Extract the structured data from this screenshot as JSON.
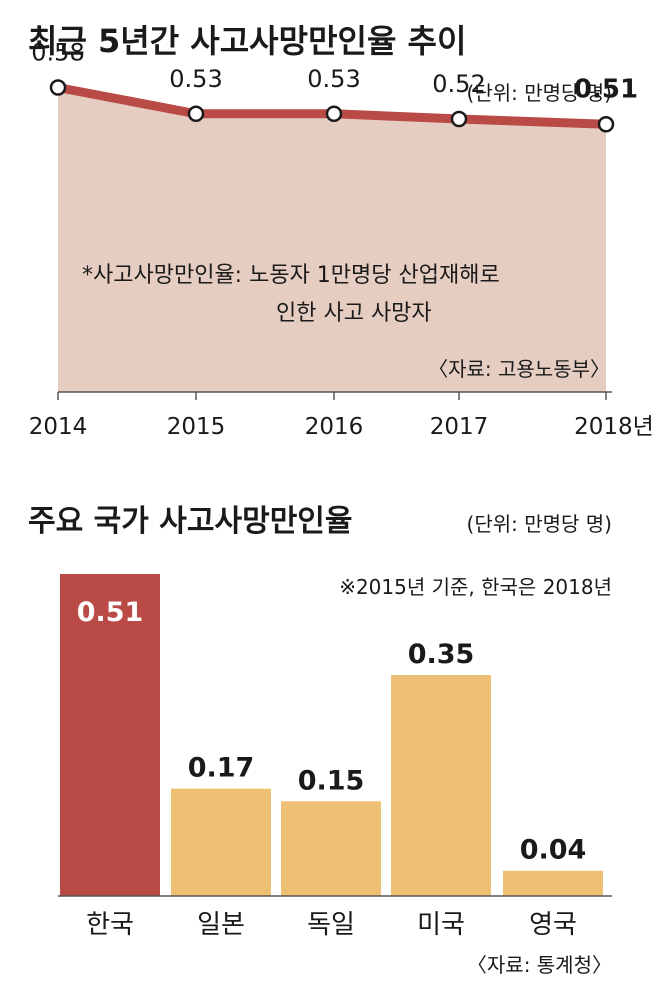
{
  "line_section": {
    "title": "최근 5년간 사고사망만인율 추이",
    "unit": "(단위: 만명당 명)",
    "note_line1": "*사고사망만인율: 노동자 1만명당 산업재해로",
    "note_line2": "인한 사고 사망자",
    "source": "〈자료: 고용노동부〉",
    "colors": {
      "line": "#b94a46",
      "area": "#e6cdc2",
      "point_fill": "#ffffff"
    }
  },
  "bar_section": {
    "title": "주요 국가 사고사망만인율",
    "unit": "(단위: 만명당 명)",
    "note": "※2015년 기준, 한국은 2018년",
    "source": "〈자료: 통계청〉",
    "colors": {
      "highlight": "#b94a46",
      "default": "#eec074",
      "label_on_highlight": "#ffffff"
    }
  },
  "chart_data": [
    {
      "type": "line",
      "title": "최근 5년간 사고사망만인율 추이",
      "x": [
        "2014",
        "2015",
        "2016",
        "2017",
        "2018년"
      ],
      "values": [
        0.58,
        0.53,
        0.53,
        0.52,
        0.51
      ],
      "value_labels": [
        "0.58",
        "0.53",
        "0.53",
        "0.52",
        "0.51"
      ],
      "xlabel": "",
      "ylabel": "",
      "ylim": [
        0.0,
        0.6
      ],
      "grid": false
    },
    {
      "type": "bar",
      "title": "주요 국가 사고사망만인율",
      "categories": [
        "한국",
        "일본",
        "독일",
        "미국",
        "영국"
      ],
      "values": [
        0.51,
        0.17,
        0.15,
        0.35,
        0.04
      ],
      "value_labels": [
        "0.51",
        "0.17",
        "0.15",
        "0.35",
        "0.04"
      ],
      "highlight_index": 0,
      "xlabel": "",
      "ylabel": "",
      "ylim": [
        0,
        0.51
      ],
      "grid": false
    }
  ]
}
